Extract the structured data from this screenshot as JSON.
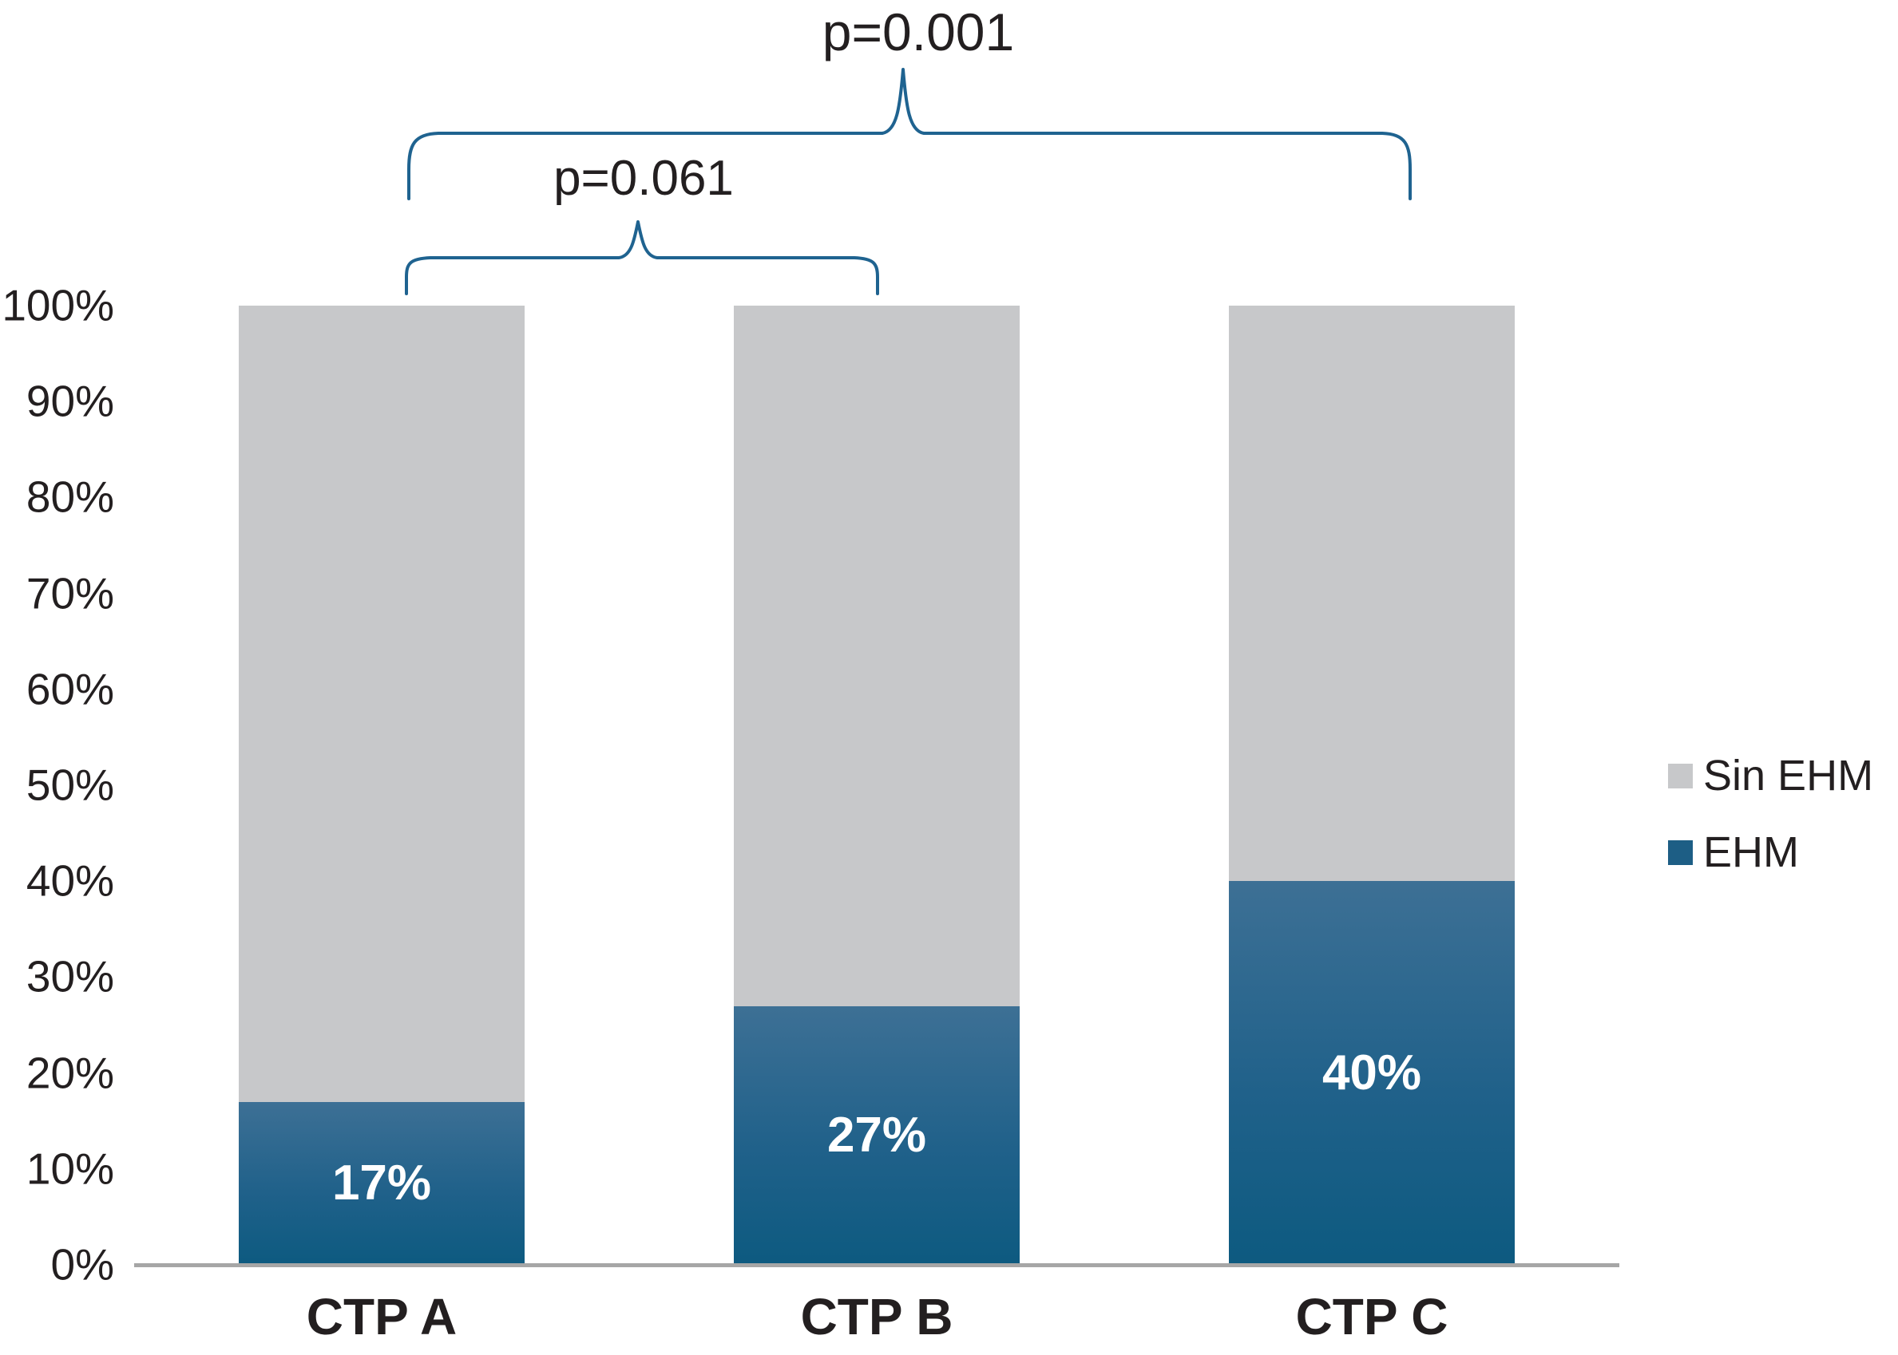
{
  "chart_data": {
    "type": "bar",
    "stacked": true,
    "title": "",
    "xlabel": "",
    "ylabel": "",
    "categories": [
      "CTP A",
      "CTP B",
      "CTP C"
    ],
    "series": [
      {
        "name": "Sin EHM",
        "values": [
          83,
          73,
          60
        ],
        "color": "#c7c8ca"
      },
      {
        "name": "EHM",
        "values": [
          17,
          27,
          40
        ],
        "color": "#1d5e85"
      }
    ],
    "value_labels": [
      "17%",
      "27%",
      "40%"
    ],
    "y_ticks": [
      "100%",
      "90%",
      "80%",
      "70%",
      "60%",
      "50%",
      "40%",
      "30%",
      "20%",
      "10%",
      "0%"
    ],
    "ylim": [
      0,
      100
    ],
    "grid": false,
    "legend_position": "right",
    "legend": [
      {
        "label": "Sin EHM",
        "color": "#c7c8ca"
      },
      {
        "label": "EHM",
        "color": "#1d5e85"
      }
    ],
    "annotations": [
      {
        "label": "p=0.001",
        "between": [
          "CTP A",
          "CTP C"
        ]
      },
      {
        "label": "p=0.061",
        "between": [
          "CTP A",
          "CTP B"
        ]
      }
    ]
  },
  "colors": {
    "text-color": "#231f20",
    "axis-line": "#a6a6a6",
    "sin-ehm-gray": "#c7c8ca",
    "ehm-blue-top": "#3d7095",
    "ehm-blue-bottom": "#0d5a80",
    "legend-blue": "#1d5e85",
    "bracket-blue": "#1f6390"
  }
}
